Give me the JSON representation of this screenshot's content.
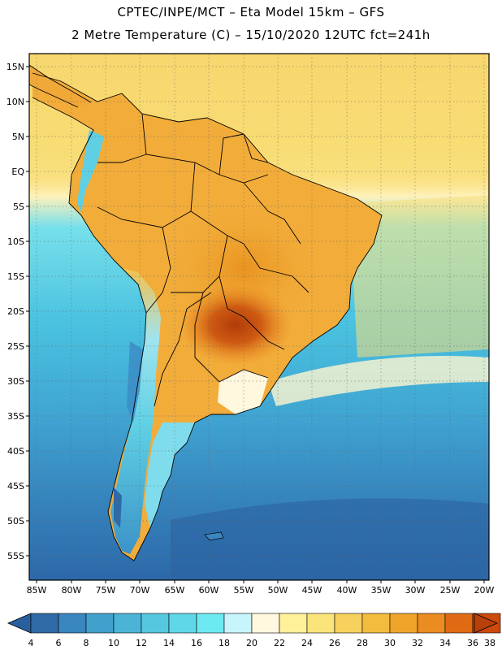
{
  "header": {
    "line1": "CPTEC/INPE/MCT –  Eta Model 15km – GFS",
    "line2": "2 Metre Temperature (C) – 15/10/2020 12UTC fct=241h"
  },
  "map": {
    "region": "South America",
    "lon_range": [
      -85,
      -20
    ],
    "lat_range": [
      -58,
      17
    ],
    "lat_labels": [
      "15N",
      "10N",
      "5N",
      "EQ",
      "5S",
      "10S",
      "15S",
      "20S",
      "25S",
      "30S",
      "35S",
      "40S",
      "45S",
      "50S",
      "55S"
    ],
    "lon_labels": [
      "85W",
      "80W",
      "75W",
      "70W",
      "65W",
      "60W",
      "55W",
      "50W",
      "45W",
      "40W",
      "35W",
      "30W",
      "25W",
      "20W"
    ],
    "colors": {
      "ocean_north": "#f5d66a",
      "ocean_equator": "#fbe784",
      "ocean_mid": "#5fd3e8",
      "ocean_south": "#2b6fae",
      "land_warm": "#f2ac3a",
      "land_hot": "#d46a16",
      "land_core": "#b8420e",
      "andes_cold": "#3f8fc6"
    }
  },
  "colorbar": {
    "labels": [
      "4",
      "6",
      "8",
      "10",
      "12",
      "14",
      "16",
      "18",
      "20",
      "22",
      "24",
      "26",
      "28",
      "30",
      "32",
      "34",
      "36",
      "38"
    ],
    "colors": [
      "#2f6aa6",
      "#3a86bf",
      "#41a0cc",
      "#4bb4d6",
      "#55c7df",
      "#5fd7e8",
      "#6de9f2",
      "#c8f4fb",
      "#fff8de",
      "#fff09a",
      "#fbe47a",
      "#f7d15d",
      "#f2bd3e",
      "#efa52a",
      "#ea8c1f",
      "#e06a13",
      "#cc4a0b"
    ],
    "low_arrow_color": "#2a5f9e",
    "high_arrow_color": "#b8400a"
  }
}
